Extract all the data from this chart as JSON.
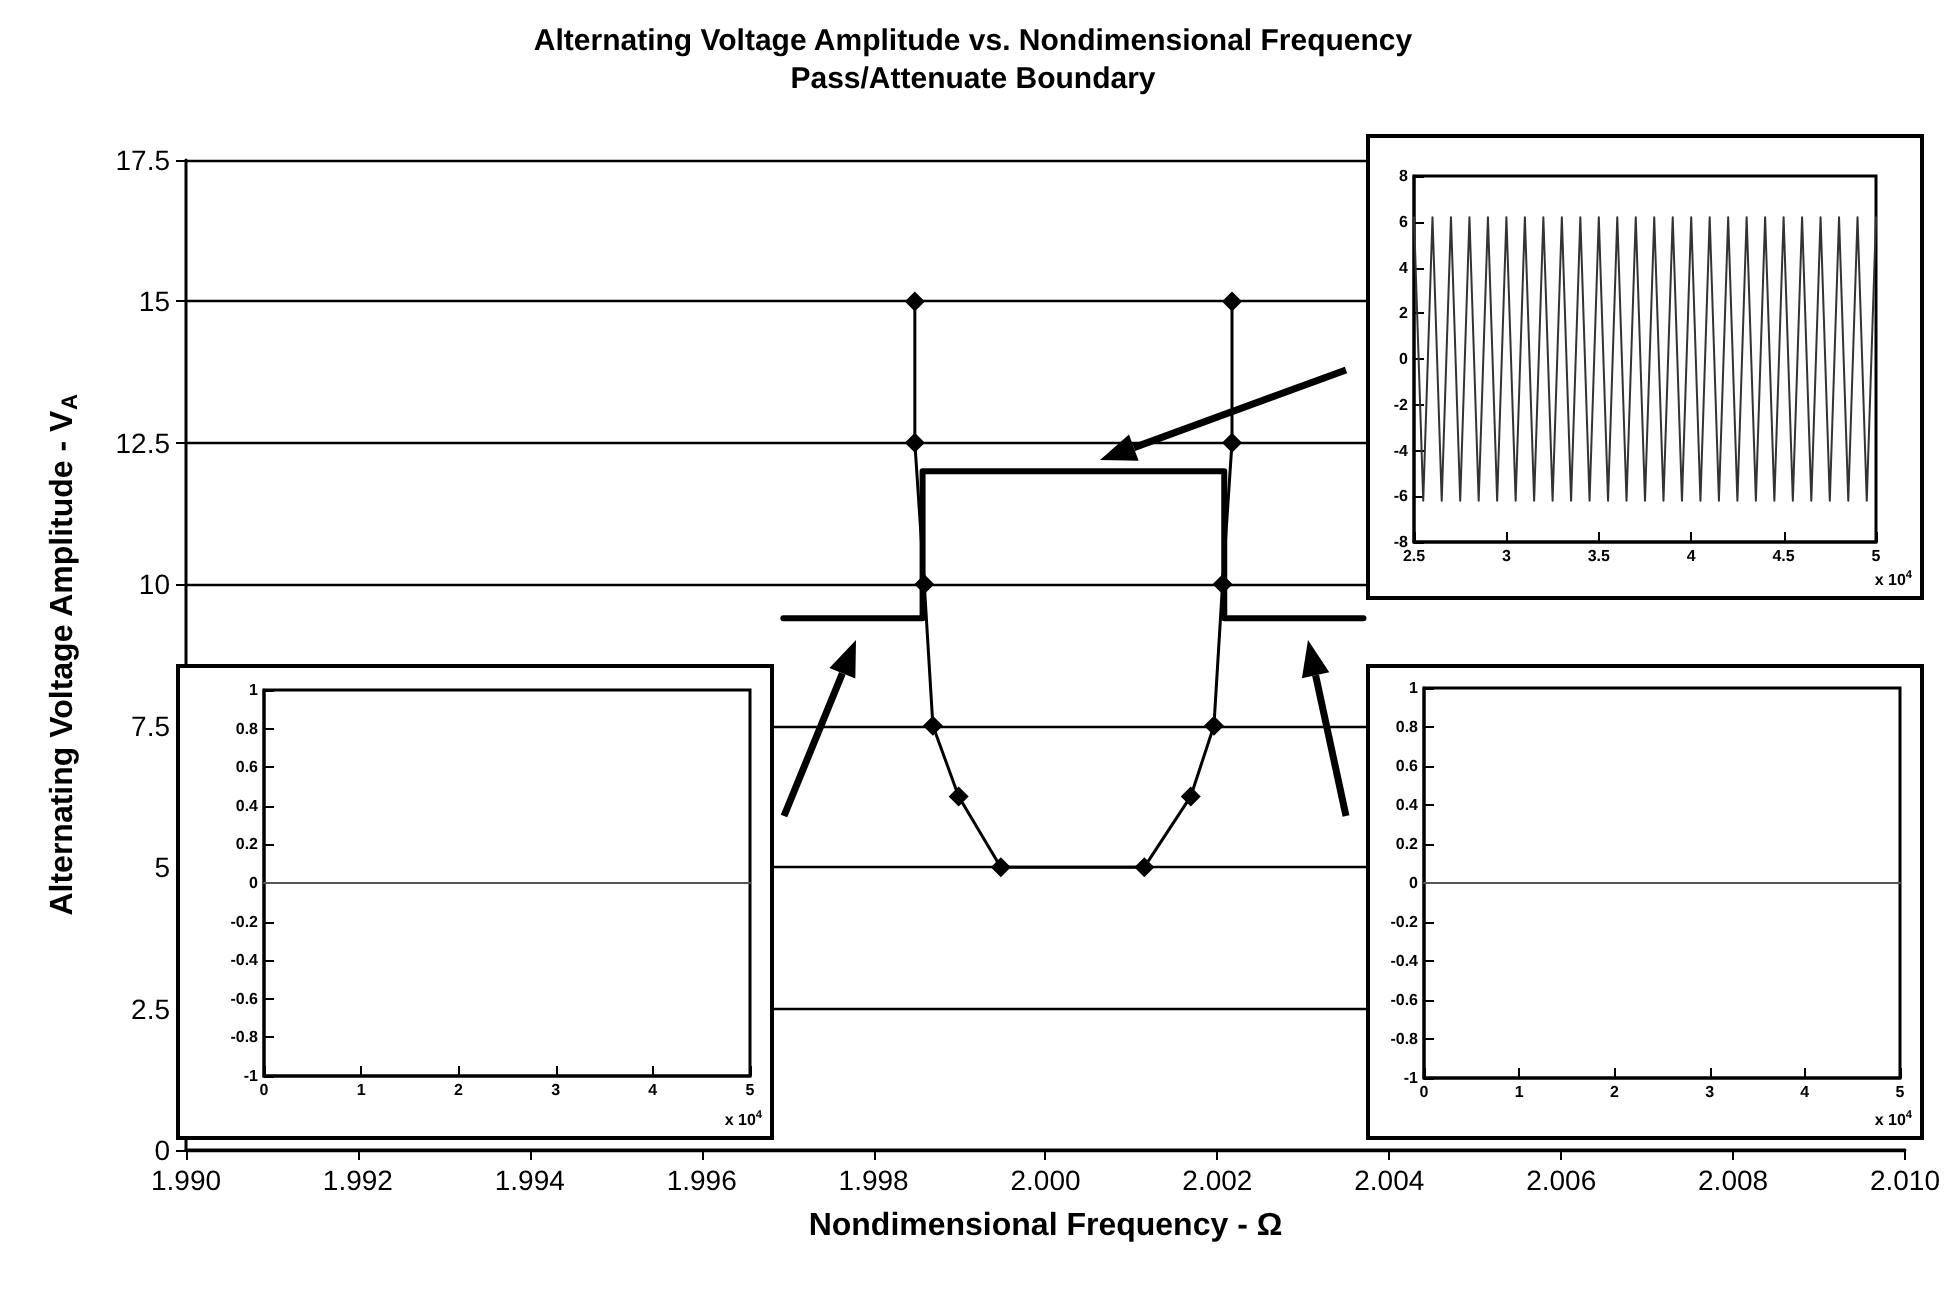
{
  "chart_data": [
    {
      "type": "line",
      "title": "Alternating Voltage Amplitude vs. Nondimensional Frequency",
      "subtitle": "Pass/Attenuate Boundary",
      "xlabel": "Nondimensional Frequency - Ω",
      "ylabel": "Alternating Voltage Amplitude - V$_{A}$",
      "xlim": [
        1.99,
        2.01
      ],
      "xticks": [
        {
          "value": 1.99,
          "label": "1.990"
        },
        {
          "value": 1.992,
          "label": "1.992"
        },
        {
          "value": 1.994,
          "label": "1.994"
        },
        {
          "value": 1.996,
          "label": "1.996"
        },
        {
          "value": 1.998,
          "label": "1.998"
        },
        {
          "value": 2.0,
          "label": "2.000"
        },
        {
          "value": 2.002,
          "label": "2.002"
        },
        {
          "value": 2.004,
          "label": "2.004"
        },
        {
          "value": 2.006,
          "label": "2.006"
        },
        {
          "value": 2.008,
          "label": "2.008"
        },
        {
          "value": 2.01,
          "label": "2.010"
        }
      ],
      "ylim": [
        0,
        17.5
      ],
      "yticks": [
        0,
        2.5,
        5,
        7.5,
        10,
        12.5,
        15,
        17.5
      ],
      "grid": "y",
      "marker": "diamond",
      "series": [
        {
          "color": "#000000",
          "x": [
            1.99848,
            1.99848,
            1.99859,
            1.99869,
            1.99899,
            1.99948,
            2.00115,
            2.00169,
            2.00196,
            2.00206,
            2.00217,
            2.00217
          ],
          "values": [
            15,
            12.5,
            10,
            7.5,
            6.25,
            5,
            5,
            6.25,
            7.5,
            10,
            12.5,
            15
          ]
        },
        {
          "color": "#000000",
          "marker": "none",
          "x": [
            1.99695,
            1.99857,
            1.99857,
            2.00208,
            2.00208,
            2.0037
          ],
          "values": [
            9.4,
            9.4,
            12,
            12,
            9.4,
            9.4
          ]
        }
      ]
    },
    {
      "type": "line",
      "xlim": [
        0,
        5
      ],
      "xticks": [
        0,
        1,
        2,
        3,
        4,
        5
      ],
      "ylim": [
        -1,
        1
      ],
      "yticks": [
        -1,
        -0.8,
        -0.6,
        -0.4,
        -0.2,
        0,
        0.2,
        0.4,
        0.6,
        0.8,
        1
      ],
      "marker": "none",
      "annotations": [
        "x 10$^{4}$"
      ],
      "series": [
        {
          "color": "#555555",
          "x": [
            0,
            5
          ],
          "values": [
            0,
            0
          ]
        }
      ]
    },
    {
      "type": "line",
      "xlim": [
        0,
        5
      ],
      "xticks": [
        0,
        1,
        2,
        3,
        4,
        5
      ],
      "ylim": [
        -1,
        1
      ],
      "yticks": [
        -1,
        -0.8,
        -0.6,
        -0.4,
        -0.2,
        0,
        0.2,
        0.4,
        0.6,
        0.8,
        1
      ],
      "marker": "none",
      "annotations": [
        "x 10$^{4}$"
      ],
      "series": [
        {
          "color": "#555555",
          "x": [
            0,
            5
          ],
          "values": [
            0,
            0
          ]
        }
      ]
    },
    {
      "type": "line",
      "xlim": [
        2.5,
        5
      ],
      "xticks": [
        2.5,
        3,
        3.5,
        4,
        4.5,
        5
      ],
      "ylim": [
        -8,
        8
      ],
      "yticks": [
        -8,
        -6,
        -4,
        -2,
        0,
        2,
        4,
        6,
        8
      ],
      "marker": "none",
      "annotations": [
        "x 10$^{4}$"
      ],
      "series": [
        {
          "color": "#333333",
          "x": [
            2.5,
            2.55,
            2.6,
            2.65,
            2.7,
            2.75,
            2.8,
            2.85,
            2.9,
            2.95,
            3,
            3.05,
            3.1,
            3.15,
            3.2,
            3.25,
            3.3,
            3.35,
            3.4,
            3.45,
            3.5,
            3.55,
            3.6,
            3.65,
            3.7,
            3.75,
            3.8,
            3.85,
            3.9,
            3.95,
            4,
            4.05,
            4.1,
            4.15,
            4.2,
            4.25,
            4.3,
            4.35,
            4.4,
            4.45,
            4.5,
            4.55,
            4.6,
            4.65,
            4.7,
            4.75,
            4.8,
            4.85,
            4.9,
            4.95,
            5
          ],
          "values": [
            6.2,
            -6.2,
            6.2,
            -6.2,
            6.2,
            -6.2,
            6.2,
            -6.2,
            6.2,
            -6.2,
            6.2,
            -6.2,
            6.2,
            -6.2,
            6.2,
            -6.2,
            6.2,
            -6.2,
            6.2,
            -6.2,
            6.2,
            -6.2,
            6.2,
            -6.2,
            6.2,
            -6.2,
            6.2,
            -6.2,
            6.2,
            -6.2,
            6.2,
            -6.2,
            6.2,
            -6.2,
            6.2,
            -6.2,
            6.2,
            -6.2,
            6.2,
            -6.2,
            6.2,
            -6.2,
            6.2,
            -6.2,
            6.2,
            -6.2,
            6.2,
            -6.2,
            6.2,
            -6.2,
            6.2
          ]
        }
      ]
    }
  ]
}
